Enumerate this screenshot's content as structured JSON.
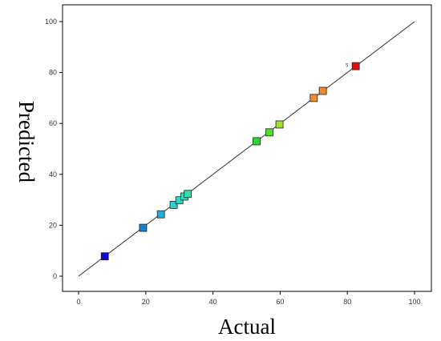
{
  "chart_data": {
    "type": "scatter",
    "title": "",
    "xlabel": "Actual",
    "ylabel": "Predicted",
    "xlim": [
      0,
      100
    ],
    "ylim": [
      0,
      100
    ],
    "xticks": [
      "0",
      "20",
      "40",
      "60",
      "80",
      "100"
    ],
    "yticks": [
      "0",
      "20",
      "40",
      "60",
      "80",
      "100"
    ],
    "grid": false,
    "reference_line": {
      "from": [
        0,
        0
      ],
      "to": [
        100,
        100
      ]
    },
    "points": [
      {
        "x": 7.8,
        "y": 7.8,
        "color": "#0a0ad2"
      },
      {
        "x": 19.2,
        "y": 19.0,
        "color": "#1a7fd0"
      },
      {
        "x": 24.5,
        "y": 24.3,
        "color": "#22b0d8"
      },
      {
        "x": 28.3,
        "y": 28.0,
        "color": "#2ad3d0"
      },
      {
        "x": 30.0,
        "y": 29.8,
        "color": "#2ed8c4"
      },
      {
        "x": 31.5,
        "y": 31.3,
        "color": "#30dcb8"
      },
      {
        "x": 32.5,
        "y": 32.3,
        "color": "#34dcae"
      },
      {
        "x": 53.0,
        "y": 53.0,
        "color": "#2fd62f"
      },
      {
        "x": 56.8,
        "y": 56.5,
        "color": "#55dc2a"
      },
      {
        "x": 59.8,
        "y": 59.6,
        "color": "#9ee02a"
      },
      {
        "x": 70.0,
        "y": 70.0,
        "color": "#f0902a"
      },
      {
        "x": 72.7,
        "y": 72.8,
        "color": "#f0882a"
      },
      {
        "x": 82.5,
        "y": 82.5,
        "color": "#dd1111",
        "annotation": "5"
      }
    ]
  }
}
